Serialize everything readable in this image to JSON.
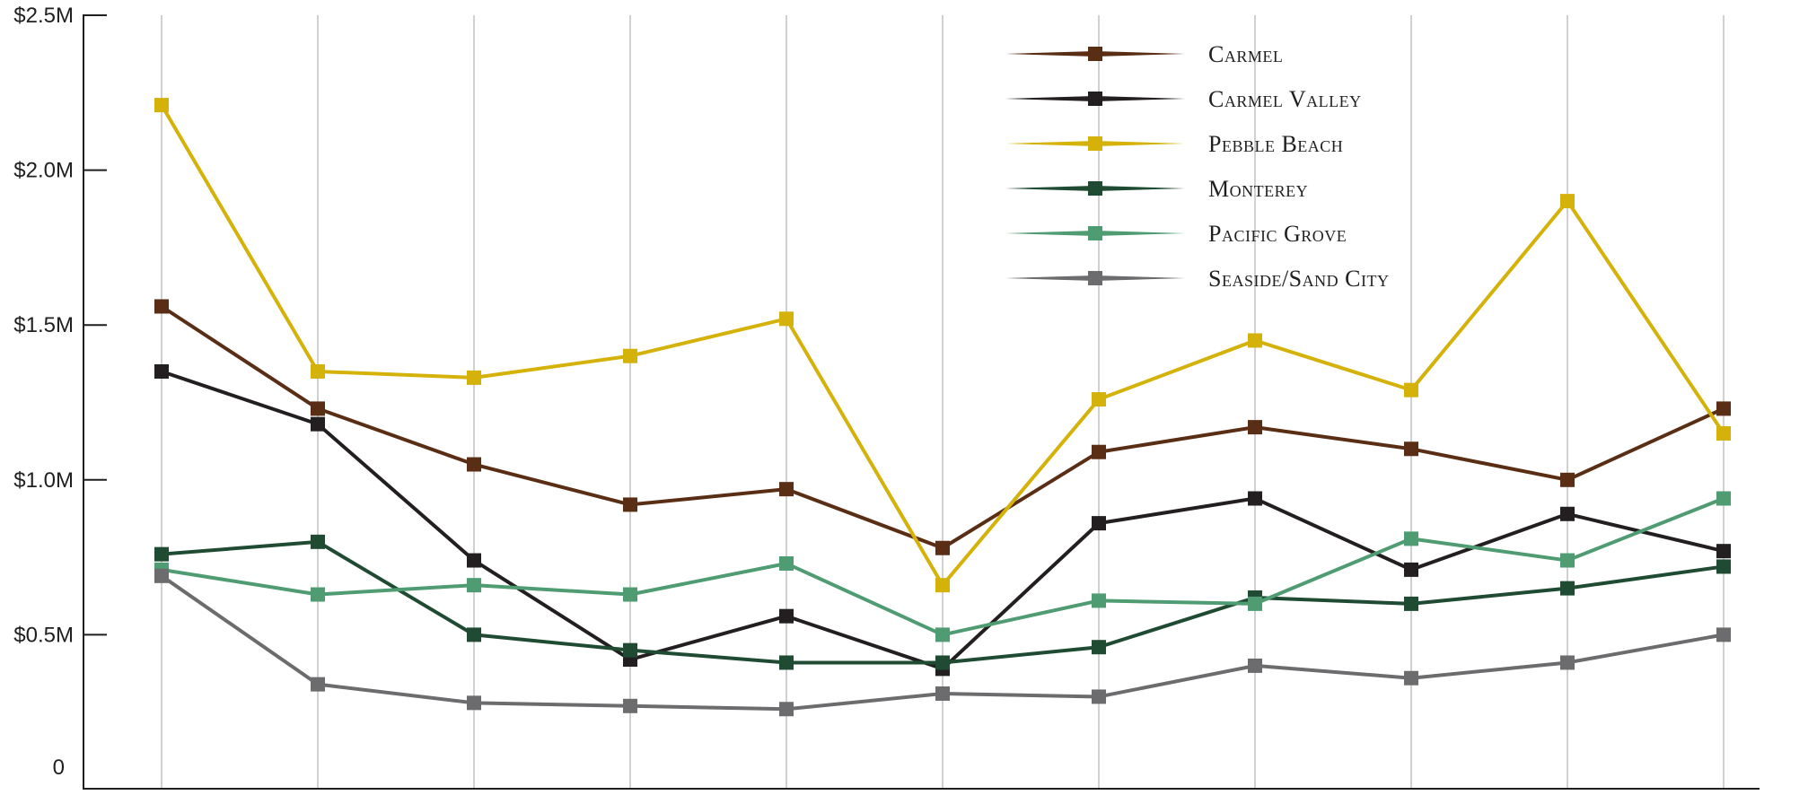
{
  "chart_data": {
    "type": "line",
    "title": "",
    "xlabel": "",
    "ylabel": "",
    "x": [
      1,
      2,
      3,
      4,
      5,
      6,
      7,
      8,
      9,
      10,
      11
    ],
    "ylim": [
      0,
      2.5
    ],
    "y_ticks": [
      {
        "value": 0,
        "label": "0"
      },
      {
        "value": 0.5,
        "label": "$0.5M"
      },
      {
        "value": 1.0,
        "label": "$1.0M"
      },
      {
        "value": 1.5,
        "label": "$1.5M"
      },
      {
        "value": 2.0,
        "label": "$2.0M"
      },
      {
        "value": 2.5,
        "label": "$2.5M"
      }
    ],
    "grid": {
      "vertical": true,
      "horizontal": false
    },
    "legend_position": "top-right",
    "marker": "square",
    "series": [
      {
        "name": "Carmel",
        "color": "#5a2e14",
        "values": [
          1.56,
          1.23,
          1.05,
          0.92,
          0.97,
          0.78,
          1.09,
          1.17,
          1.1,
          1.0,
          1.23
        ]
      },
      {
        "name": "Carmel Valley",
        "color": "#231f20",
        "values": [
          1.35,
          1.18,
          0.74,
          0.42,
          0.56,
          0.39,
          0.86,
          0.94,
          0.71,
          0.89,
          0.77
        ]
      },
      {
        "name": "Pebble Beach",
        "color": "#d4b20a",
        "values": [
          2.21,
          1.35,
          1.33,
          1.4,
          1.52,
          0.66,
          1.26,
          1.45,
          1.29,
          1.9,
          1.15
        ]
      },
      {
        "name": "Monterey",
        "color": "#1f4b33",
        "values": [
          0.76,
          0.8,
          0.5,
          0.45,
          0.41,
          0.41,
          0.46,
          0.62,
          0.6,
          0.65,
          0.72
        ]
      },
      {
        "name": "Pacific Grove",
        "color": "#4f9c72",
        "values": [
          0.71,
          0.63,
          0.66,
          0.63,
          0.73,
          0.5,
          0.61,
          0.6,
          0.81,
          0.74,
          0.94
        ]
      },
      {
        "name": "Seaside/Sand City",
        "color": "#6c6c6e",
        "values": [
          0.69,
          0.34,
          0.28,
          0.27,
          0.26,
          0.31,
          0.3,
          0.4,
          0.36,
          0.41,
          0.5
        ]
      }
    ]
  }
}
